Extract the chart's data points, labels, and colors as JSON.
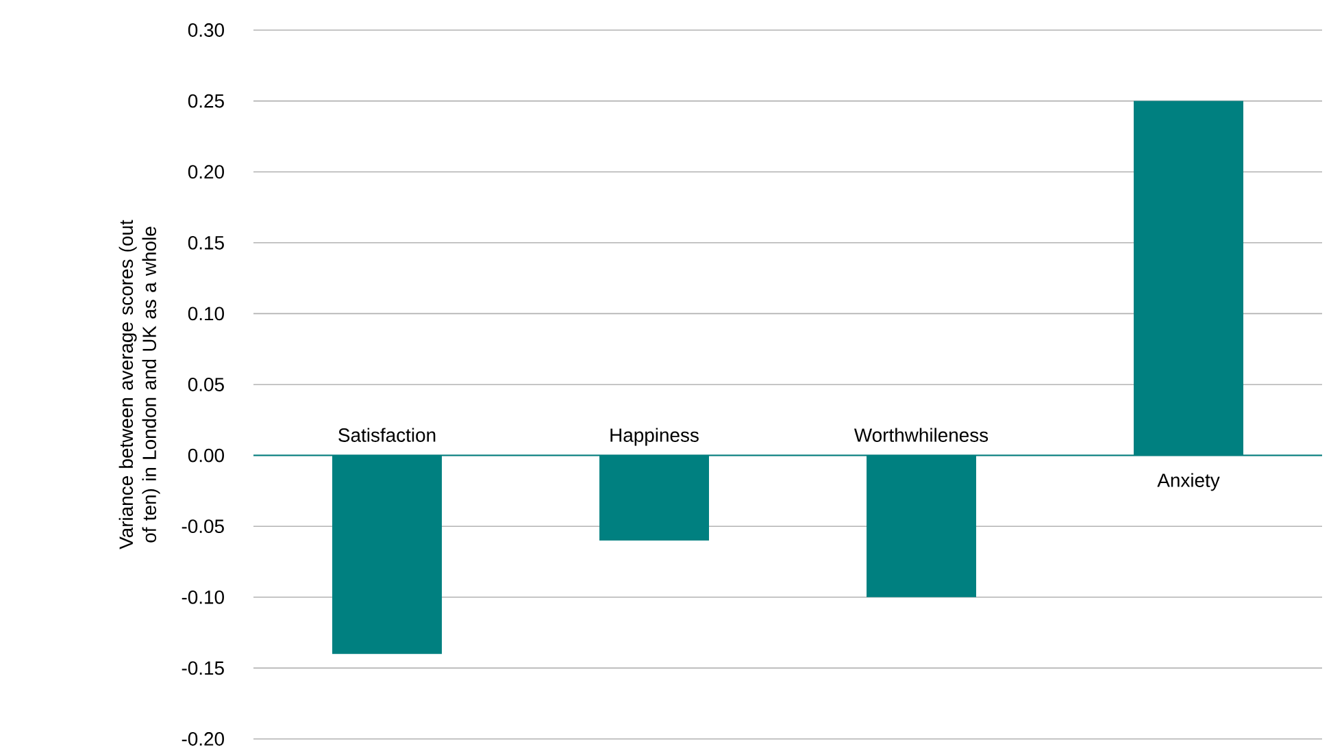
{
  "chart_data": {
    "type": "bar",
    "ylabel": "Variance between average scores (out of ten) in London and UK as a whole",
    "categories": [
      "Satisfaction",
      "Happiness",
      "Worthwhileness",
      "Anxiety"
    ],
    "values": [
      -0.14,
      -0.06,
      -0.1,
      0.25
    ],
    "color": "#008080",
    "ylim": [
      -0.2,
      0.3
    ],
    "yticks": [
      {
        "value": -0.2,
        "label": "-0.20"
      },
      {
        "value": -0.15,
        "label": "-0.15"
      },
      {
        "value": -0.1,
        "label": "-0.10"
      },
      {
        "value": -0.05,
        "label": "-0.05"
      },
      {
        "value": 0,
        "label": "0.00"
      },
      {
        "value": 0.05,
        "label": "0.05"
      },
      {
        "value": 0.1,
        "label": "0.10"
      },
      {
        "value": 0.15,
        "label": "0.15"
      },
      {
        "value": 0.2,
        "label": "0.20"
      },
      {
        "value": 0.25,
        "label": "0.25"
      },
      {
        "value": 0.3,
        "label": "0.30"
      }
    ],
    "grid": "y"
  }
}
